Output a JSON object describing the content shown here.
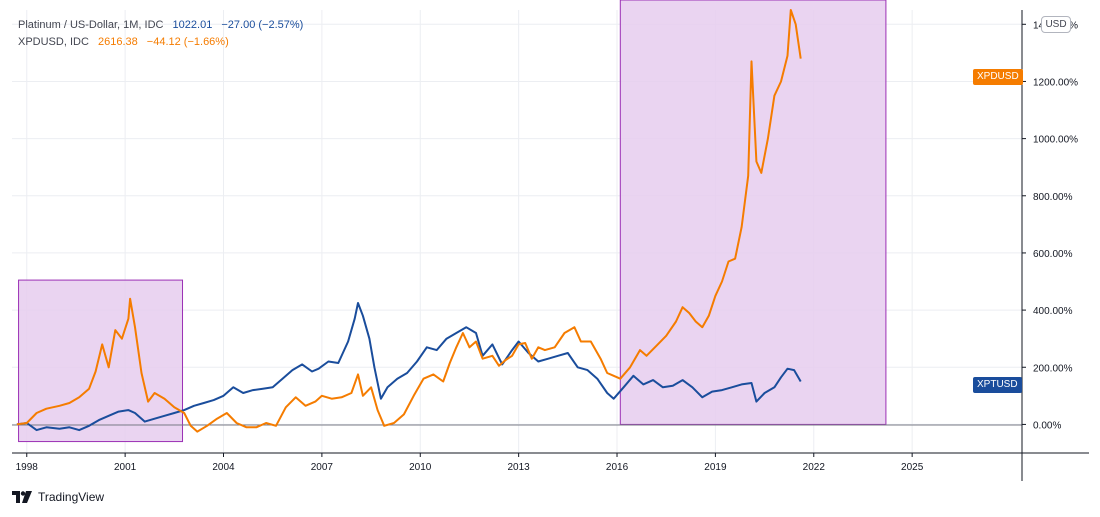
{
  "legend": [
    {
      "name": "Platinum / US-Dollar, 1M, IDC",
      "last": "1022.01",
      "change": "−27.00 (−2.57%)",
      "color": "#1a4d9c"
    },
    {
      "name": "XPDUSD, IDC",
      "last": "2616.38",
      "change": "−44.12 (−1.66%)",
      "color": "#f57c00"
    }
  ],
  "currency_button": "USD",
  "badges": {
    "xpd": "XPDUSD",
    "xpt": "XPTUSD"
  },
  "footer": {
    "brand": "TradingView",
    "logo_icon": "tradingview-logo-icon"
  },
  "colors": {
    "xpt": "#1a4d9c",
    "xpd": "#f57c00",
    "highlight_fill": "#e6cdef",
    "highlight_stroke": "#9b30b5"
  },
  "chart_data": {
    "type": "line",
    "ylim": [
      -100,
      1450
    ],
    "xlim": [
      1997.55,
      2028.35
    ],
    "x_ticks": [
      1998,
      2001,
      2004,
      2007,
      2010,
      2013,
      2016,
      2019,
      2022,
      2025
    ],
    "x_tick_labels": [
      "1998",
      "2001",
      "2004",
      "2007",
      "2010",
      "2013",
      "2016",
      "2019",
      "2022",
      "2025"
    ],
    "y_ticks": [
      0,
      200,
      400,
      600,
      800,
      1000,
      1200,
      1400
    ],
    "y_tick_labels": [
      "0.00%",
      "200.00%",
      "400.00%",
      "600.00%",
      "800.00%",
      "1000.00%",
      "1200.00%",
      "1400.00%"
    ],
    "highlight_regions": [
      {
        "x0": 1997.75,
        "x1": 2002.75,
        "y0": -60,
        "y1": 505
      },
      {
        "x0": 2016.1,
        "x1": 2024.2,
        "y0": 0,
        "y1": 1485
      }
    ],
    "series": [
      {
        "name": "XPDUSD",
        "points": [
          [
            1997.7,
            0
          ],
          [
            1998.0,
            5
          ],
          [
            1998.3,
            40
          ],
          [
            1998.6,
            55
          ],
          [
            1999.0,
            65
          ],
          [
            1999.3,
            75
          ],
          [
            1999.6,
            95
          ],
          [
            1999.9,
            125
          ],
          [
            2000.1,
            185
          ],
          [
            2000.3,
            280
          ],
          [
            2000.5,
            200
          ],
          [
            2000.7,
            330
          ],
          [
            2000.9,
            300
          ],
          [
            2001.1,
            370
          ],
          [
            2001.15,
            440
          ],
          [
            2001.3,
            340
          ],
          [
            2001.5,
            180
          ],
          [
            2001.7,
            80
          ],
          [
            2001.9,
            110
          ],
          [
            2002.2,
            90
          ],
          [
            2002.5,
            60
          ],
          [
            2002.8,
            40
          ],
          [
            2003.0,
            -5
          ],
          [
            2003.2,
            -25
          ],
          [
            2003.5,
            -5
          ],
          [
            2003.8,
            20
          ],
          [
            2004.1,
            40
          ],
          [
            2004.4,
            5
          ],
          [
            2004.7,
            -10
          ],
          [
            2005.0,
            -10
          ],
          [
            2005.3,
            5
          ],
          [
            2005.6,
            -5
          ],
          [
            2005.9,
            60
          ],
          [
            2006.2,
            95
          ],
          [
            2006.5,
            65
          ],
          [
            2006.8,
            80
          ],
          [
            2007.0,
            100
          ],
          [
            2007.3,
            90
          ],
          [
            2007.6,
            95
          ],
          [
            2007.9,
            110
          ],
          [
            2008.1,
            175
          ],
          [
            2008.25,
            100
          ],
          [
            2008.5,
            130
          ],
          [
            2008.7,
            50
          ],
          [
            2008.9,
            -5
          ],
          [
            2009.2,
            5
          ],
          [
            2009.5,
            35
          ],
          [
            2009.8,
            100
          ],
          [
            2010.1,
            160
          ],
          [
            2010.4,
            175
          ],
          [
            2010.7,
            150
          ],
          [
            2010.9,
            215
          ],
          [
            2011.1,
            270
          ],
          [
            2011.3,
            320
          ],
          [
            2011.5,
            270
          ],
          [
            2011.7,
            290
          ],
          [
            2011.9,
            230
          ],
          [
            2012.2,
            240
          ],
          [
            2012.4,
            205
          ],
          [
            2012.6,
            225
          ],
          [
            2012.8,
            240
          ],
          [
            2013.0,
            280
          ],
          [
            2013.2,
            285
          ],
          [
            2013.4,
            230
          ],
          [
            2013.6,
            270
          ],
          [
            2013.8,
            260
          ],
          [
            2014.1,
            270
          ],
          [
            2014.4,
            320
          ],
          [
            2014.7,
            340
          ],
          [
            2014.9,
            290
          ],
          [
            2015.2,
            290
          ],
          [
            2015.5,
            230
          ],
          [
            2015.7,
            180
          ],
          [
            2015.9,
            170
          ],
          [
            2016.1,
            160
          ],
          [
            2016.4,
            200
          ],
          [
            2016.7,
            260
          ],
          [
            2016.9,
            240
          ],
          [
            2017.2,
            275
          ],
          [
            2017.5,
            310
          ],
          [
            2017.8,
            360
          ],
          [
            2018.0,
            410
          ],
          [
            2018.2,
            390
          ],
          [
            2018.4,
            360
          ],
          [
            2018.6,
            340
          ],
          [
            2018.8,
            380
          ],
          [
            2019.0,
            450
          ],
          [
            2019.2,
            500
          ],
          [
            2019.4,
            570
          ],
          [
            2019.6,
            580
          ],
          [
            2019.8,
            690
          ],
          [
            2020.0,
            870
          ],
          [
            2020.1,
            1270
          ],
          [
            2020.25,
            920
          ],
          [
            2020.4,
            880
          ],
          [
            2020.6,
            1000
          ],
          [
            2020.8,
            1150
          ],
          [
            2021.0,
            1200
          ],
          [
            2021.2,
            1290
          ],
          [
            2021.3,
            1450
          ],
          [
            2021.45,
            1400
          ],
          [
            2021.6,
            1280
          ]
        ]
      },
      {
        "name": "XPTUSD",
        "points": [
          [
            1997.7,
            0
          ],
          [
            1998.0,
            5
          ],
          [
            1998.3,
            -20
          ],
          [
            1998.6,
            -10
          ],
          [
            1999.0,
            -15
          ],
          [
            1999.3,
            -10
          ],
          [
            1999.6,
            -20
          ],
          [
            1999.9,
            -5
          ],
          [
            2000.2,
            15
          ],
          [
            2000.5,
            30
          ],
          [
            2000.8,
            45
          ],
          [
            2001.1,
            50
          ],
          [
            2001.3,
            40
          ],
          [
            2001.6,
            10
          ],
          [
            2001.9,
            20
          ],
          [
            2002.2,
            30
          ],
          [
            2002.5,
            40
          ],
          [
            2002.8,
            50
          ],
          [
            2003.1,
            65
          ],
          [
            2003.4,
            75
          ],
          [
            2003.7,
            85
          ],
          [
            2004.0,
            100
          ],
          [
            2004.3,
            130
          ],
          [
            2004.6,
            110
          ],
          [
            2004.9,
            120
          ],
          [
            2005.2,
            125
          ],
          [
            2005.5,
            130
          ],
          [
            2005.8,
            160
          ],
          [
            2006.1,
            190
          ],
          [
            2006.4,
            210
          ],
          [
            2006.7,
            185
          ],
          [
            2006.9,
            195
          ],
          [
            2007.2,
            220
          ],
          [
            2007.5,
            215
          ],
          [
            2007.8,
            290
          ],
          [
            2008.0,
            370
          ],
          [
            2008.1,
            425
          ],
          [
            2008.25,
            380
          ],
          [
            2008.45,
            300
          ],
          [
            2008.6,
            200
          ],
          [
            2008.8,
            90
          ],
          [
            2009.0,
            130
          ],
          [
            2009.3,
            160
          ],
          [
            2009.6,
            180
          ],
          [
            2009.9,
            220
          ],
          [
            2010.2,
            270
          ],
          [
            2010.5,
            260
          ],
          [
            2010.8,
            300
          ],
          [
            2011.1,
            320
          ],
          [
            2011.4,
            340
          ],
          [
            2011.7,
            320
          ],
          [
            2011.9,
            240
          ],
          [
            2012.2,
            280
          ],
          [
            2012.5,
            210
          ],
          [
            2012.8,
            260
          ],
          [
            2013.0,
            290
          ],
          [
            2013.3,
            250
          ],
          [
            2013.6,
            220
          ],
          [
            2013.9,
            230
          ],
          [
            2014.2,
            240
          ],
          [
            2014.5,
            250
          ],
          [
            2014.8,
            200
          ],
          [
            2015.1,
            190
          ],
          [
            2015.4,
            160
          ],
          [
            2015.7,
            110
          ],
          [
            2015.9,
            90
          ],
          [
            2016.2,
            130
          ],
          [
            2016.5,
            170
          ],
          [
            2016.8,
            140
          ],
          [
            2017.1,
            155
          ],
          [
            2017.4,
            130
          ],
          [
            2017.7,
            135
          ],
          [
            2018.0,
            155
          ],
          [
            2018.3,
            130
          ],
          [
            2018.6,
            95
          ],
          [
            2018.9,
            115
          ],
          [
            2019.2,
            120
          ],
          [
            2019.5,
            130
          ],
          [
            2019.8,
            140
          ],
          [
            2020.1,
            145
          ],
          [
            2020.25,
            80
          ],
          [
            2020.5,
            110
          ],
          [
            2020.8,
            130
          ],
          [
            2021.0,
            165
          ],
          [
            2021.2,
            195
          ],
          [
            2021.4,
            190
          ],
          [
            2021.6,
            150
          ]
        ]
      }
    ]
  }
}
